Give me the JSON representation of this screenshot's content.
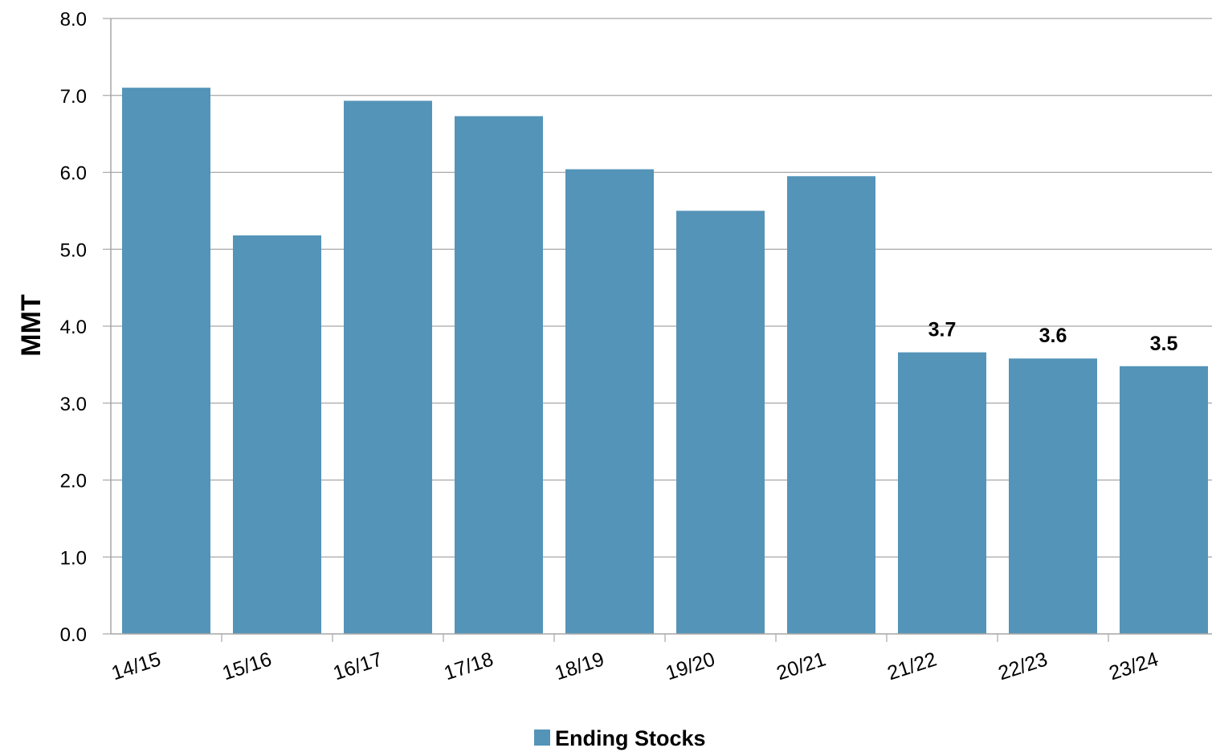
{
  "chart_data": {
    "type": "bar",
    "categories": [
      "14/15",
      "15/16",
      "16/17",
      "17/18",
      "18/19",
      "19/20",
      "20/21",
      "21/22",
      "22/23",
      "23/24"
    ],
    "series": [
      {
        "name": "Ending Stocks",
        "values": [
          7.1,
          5.18,
          6.93,
          6.73,
          6.04,
          5.5,
          5.95,
          3.66,
          3.58,
          3.48
        ],
        "color": "#5494b8"
      }
    ],
    "data_labels": [
      "",
      "",
      "",
      "",
      "",
      "",
      "",
      "3.7",
      "3.6",
      "3.5"
    ],
    "ylabel": "MMT",
    "xlabel": "",
    "title": "",
    "ylim": [
      0,
      8
    ],
    "y_ticks": [
      "0.0",
      "1.0",
      "2.0",
      "3.0",
      "4.0",
      "5.0",
      "6.0",
      "7.0",
      "8.0"
    ],
    "grid": "horizontal",
    "gridline_color": "#a6a6a6",
    "legend_position": "bottom-center"
  }
}
